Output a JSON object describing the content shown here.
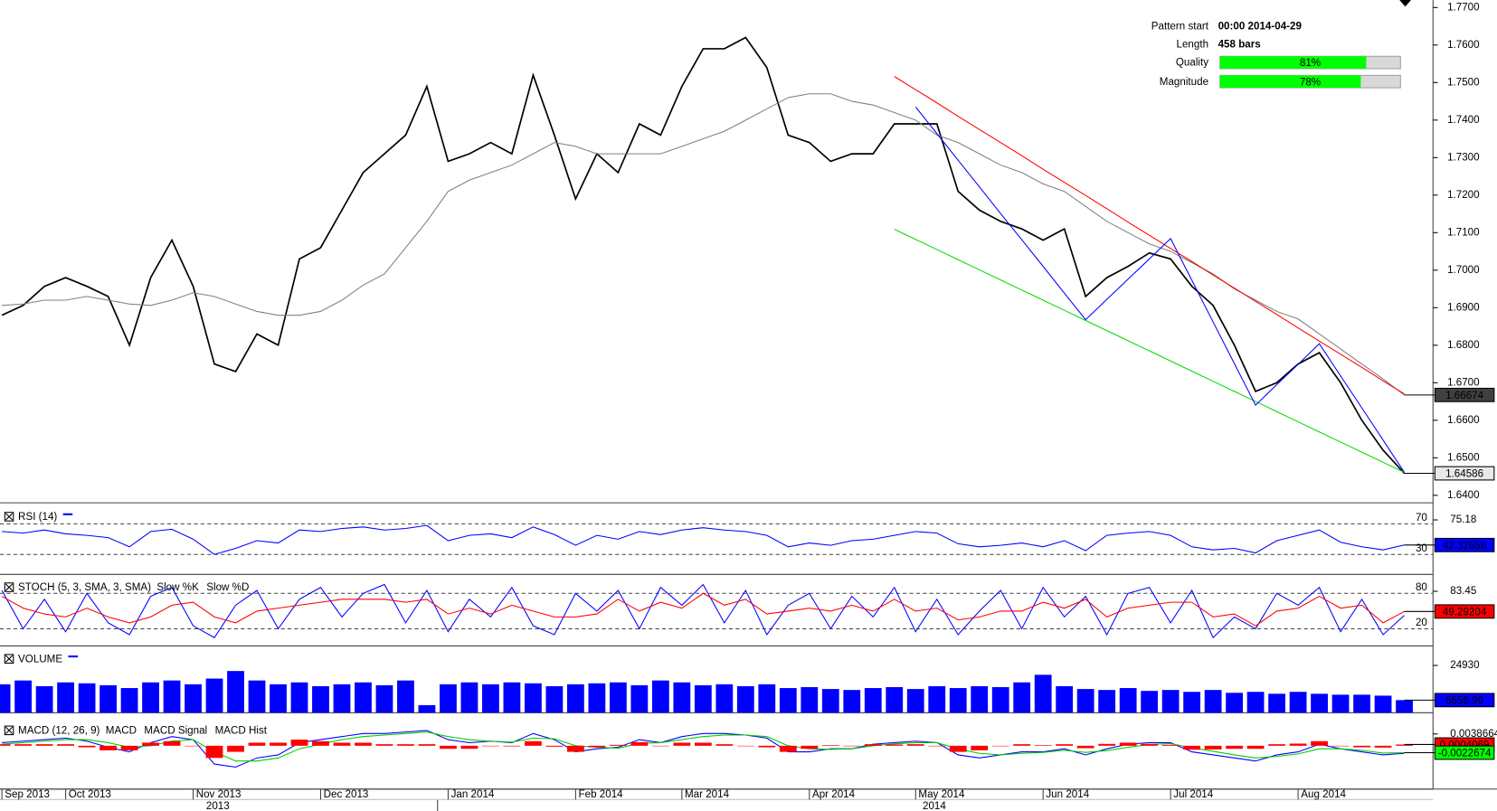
{
  "info": {
    "rows": [
      {
        "label": "Pattern start",
        "value": "00:00 2014-04-29"
      },
      {
        "label": "Length",
        "value": "458 bars"
      },
      {
        "label": "Quality",
        "value": 81,
        "value_label": "81%",
        "color": "#00ff00"
      },
      {
        "label": "Magnitude",
        "value": 78,
        "value_label": "78%",
        "color": "#00ff00"
      }
    ],
    "xlim": [
      0,
      100
    ]
  },
  "years": [
    "2013",
    "2014"
  ],
  "chart_data": [
    {
      "type": "line",
      "categories": [
        "Sep 2013",
        null,
        null,
        "Oct 2013",
        null,
        null,
        null,
        null,
        null,
        "Nov 2013",
        null,
        null,
        null,
        null,
        null,
        "Dec 2013",
        null,
        null,
        null,
        null,
        null,
        "Jan 2014",
        null,
        null,
        null,
        null,
        null,
        "Feb 2014",
        null,
        null,
        null,
        null,
        "Mar 2014",
        null,
        null,
        null,
        null,
        null,
        "Apr 2014",
        null,
        null,
        null,
        null,
        "May 2014",
        null,
        null,
        null,
        null,
        null,
        "Jun 2014",
        null,
        null,
        null,
        null,
        null,
        "Jul 2014",
        null,
        null,
        null,
        null,
        null,
        "Aug 2014",
        null,
        null,
        null,
        null,
        null
      ],
      "ylim": [
        1.638,
        1.772
      ],
      "yticks": [
        {
          "value": 1.77,
          "label": "1.7700"
        },
        {
          "value": 1.76,
          "label": "1.7600"
        },
        {
          "value": 1.75,
          "label": "1.7500"
        },
        {
          "value": 1.74,
          "label": "1.7400"
        },
        {
          "value": 1.73,
          "label": "1.7300"
        },
        {
          "value": 1.72,
          "label": "1.7200"
        },
        {
          "value": 1.71,
          "label": "1.7100"
        },
        {
          "value": 1.7,
          "label": "1.7000"
        },
        {
          "value": 1.69,
          "label": "1.6900"
        },
        {
          "value": 1.68,
          "label": "1.6800"
        },
        {
          "value": 1.67,
          "label": "1.6700"
        },
        {
          "value": 1.66,
          "label": "1.6600"
        },
        {
          "value": 1.65,
          "label": "1.6500"
        },
        {
          "value": 1.64,
          "label": "1.6400"
        }
      ],
      "series": [
        {
          "color": "#000000",
          "values": [
            1.688,
            1.6906,
            1.6957,
            1.698,
            1.6957,
            1.693,
            1.68,
            1.698,
            1.708,
            1.6957,
            1.675,
            1.673,
            1.683,
            1.68,
            1.703,
            1.706,
            1.716,
            1.726,
            1.731,
            1.736,
            1.749,
            1.729,
            1.731,
            1.734,
            1.731,
            1.752,
            1.736,
            1.719,
            1.731,
            1.726,
            1.739,
            1.736,
            1.749,
            1.759,
            1.759,
            1.762,
            1.754,
            1.736,
            1.734,
            1.729,
            1.731,
            1.731,
            1.739,
            1.739,
            1.739,
            1.721,
            1.716,
            1.713,
            1.711,
            1.708,
            1.711,
            1.693,
            1.698,
            1.701,
            1.7046,
            1.703,
            1.6957,
            1.6906,
            1.68,
            1.6677,
            1.67,
            1.675,
            1.678,
            1.67,
            1.66,
            1.652,
            1.64586
          ]
        },
        {
          "color": "#808080",
          "values": [
            1.6906,
            1.691,
            1.692,
            1.692,
            1.693,
            1.692,
            1.691,
            1.6906,
            1.692,
            1.694,
            1.693,
            1.691,
            1.689,
            1.688,
            1.688,
            1.689,
            1.692,
            1.696,
            1.699,
            1.706,
            1.713,
            1.721,
            1.724,
            1.726,
            1.728,
            1.731,
            1.734,
            1.733,
            1.731,
            1.731,
            1.731,
            1.731,
            1.733,
            1.735,
            1.737,
            1.74,
            1.743,
            1.746,
            1.747,
            1.747,
            1.745,
            1.744,
            1.742,
            1.74,
            1.736,
            1.734,
            1.731,
            1.728,
            1.726,
            1.723,
            1.721,
            1.717,
            1.713,
            1.71,
            1.707,
            1.705,
            1.702,
            1.699,
            1.695,
            1.692,
            1.689,
            1.687,
            1.683,
            1.679,
            1.675,
            1.671,
            1.66674
          ]
        },
        {
          "color": "#ff0000",
          "values": [
            null,
            null,
            null,
            null,
            null,
            null,
            null,
            null,
            null,
            null,
            null,
            null,
            null,
            null,
            null,
            null,
            null,
            null,
            null,
            null,
            null,
            null,
            null,
            null,
            null,
            null,
            null,
            null,
            null,
            null,
            null,
            null,
            null,
            null,
            null,
            null,
            null,
            null,
            null,
            null,
            null,
            null,
            1.7516,
            1.7481,
            1.7446,
            1.741,
            1.7375,
            1.734,
            1.7305,
            1.7269,
            1.7234,
            1.7199,
            1.7164,
            1.7128,
            1.7093,
            1.7058,
            1.7023,
            1.6987,
            1.6952,
            1.6917,
            1.6882,
            1.6846,
            1.6811,
            1.6776,
            1.6741,
            1.6705,
            1.667
          ]
        },
        {
          "color": "#00dd00",
          "values": [
            null,
            null,
            null,
            null,
            null,
            null,
            null,
            null,
            null,
            null,
            null,
            null,
            null,
            null,
            null,
            null,
            null,
            null,
            null,
            null,
            null,
            null,
            null,
            null,
            null,
            null,
            null,
            null,
            null,
            null,
            null,
            null,
            null,
            null,
            null,
            null,
            null,
            null,
            null,
            null,
            null,
            null,
            1.7109,
            1.7082,
            1.7055,
            1.7028,
            1.7001,
            1.6974,
            1.6947,
            1.692,
            1.6893,
            1.6866,
            1.6839,
            1.6812,
            1.6785,
            1.6758,
            1.6731,
            1.6704,
            1.6677,
            1.665,
            1.6623,
            1.6596,
            1.6569,
            1.6542,
            1.6515,
            1.6488,
            1.6461
          ]
        },
        {
          "color": "#0000ff",
          "values": [
            null,
            null,
            null,
            null,
            null,
            null,
            null,
            null,
            null,
            null,
            null,
            null,
            null,
            null,
            null,
            null,
            null,
            null,
            null,
            null,
            null,
            null,
            null,
            null,
            null,
            null,
            null,
            null,
            null,
            null,
            null,
            null,
            null,
            null,
            null,
            null,
            null,
            null,
            null,
            null,
            null,
            null,
            null,
            1.7435,
            1.7364,
            1.7293,
            1.7222,
            1.7151,
            1.7081,
            1.701,
            1.6939,
            1.6868,
            1.6922,
            1.6976,
            1.703,
            1.7084,
            1.6973,
            1.6862,
            1.6751,
            1.664,
            1.6695,
            1.6749,
            1.6804,
            1.6718,
            1.6633,
            1.6547,
            1.6461
          ]
        }
      ]
    },
    {
      "type": "line",
      "title": "RSI (14)",
      "ylim": [
        4,
        90
      ],
      "yticks": [
        30,
        70
      ],
      "axis_ticks": [
        75.18
      ],
      "series": [
        {
          "color": "#0000ff",
          "values": [
            60,
            58,
            62,
            57,
            55,
            52,
            40,
            60,
            63,
            50,
            30,
            38,
            48,
            45,
            62,
            60,
            64,
            66,
            62,
            64,
            68,
            48,
            55,
            57,
            52,
            66,
            56,
            42,
            55,
            50,
            60,
            56,
            62,
            65,
            62,
            60,
            55,
            40,
            45,
            42,
            48,
            50,
            55,
            60,
            58,
            44,
            40,
            42,
            45,
            40,
            48,
            35,
            55,
            58,
            60,
            55,
            40,
            36,
            38,
            32,
            48,
            55,
            62,
            46,
            40,
            36,
            42.32656
          ]
        }
      ]
    },
    {
      "type": "line",
      "title": "STOCH (5, 3, SMA, 3, SMA)",
      "ylim": [
        -9,
        104
      ],
      "yticks": [
        20,
        80
      ],
      "axis_ticks": [
        83.45
      ],
      "series": [
        {
          "name": "Slow %K",
          "color": "#0000ff",
          "values": [
            85,
            20,
            70,
            15,
            80,
            30,
            10,
            75,
            90,
            25,
            5,
            60,
            85,
            20,
            70,
            90,
            40,
            80,
            95,
            30,
            85,
            15,
            70,
            40,
            90,
            25,
            10,
            80,
            50,
            85,
            20,
            90,
            60,
            95,
            30,
            85,
            10,
            60,
            80,
            20,
            75,
            40,
            90,
            15,
            70,
            10,
            50,
            85,
            20,
            90,
            40,
            75,
            10,
            80,
            90,
            30,
            85,
            5,
            40,
            20,
            80,
            60,
            90,
            15,
            70,
            10,
            42.5771
          ]
        },
        {
          "name": "Slow %D",
          "color": "#ff0000",
          "values": [
            75,
            55,
            45,
            40,
            55,
            40,
            30,
            40,
            60,
            65,
            40,
            30,
            50,
            55,
            60,
            65,
            70,
            70,
            70,
            65,
            70,
            45,
            55,
            45,
            60,
            50,
            40,
            40,
            45,
            70,
            50,
            65,
            55,
            80,
            60,
            70,
            45,
            50,
            55,
            50,
            60,
            50,
            70,
            50,
            55,
            35,
            40,
            50,
            50,
            65,
            55,
            70,
            40,
            55,
            60,
            65,
            65,
            40,
            45,
            25,
            50,
            55,
            75,
            55,
            60,
            30,
            49.29204
          ]
        }
      ]
    },
    {
      "type": "bar",
      "title": "VOLUME",
      "ylim": [
        0,
        32700
      ],
      "axis_ticks": [
        24930
      ],
      "series": [
        {
          "color": "#0000ff",
          "values": [
            15000,
            17000,
            14000,
            16000,
            15500,
            14500,
            13000,
            16000,
            17000,
            15000,
            18000,
            22000,
            17000,
            15000,
            16000,
            14000,
            15000,
            16000,
            14500,
            17000,
            4000,
            15000,
            16000,
            15000,
            16000,
            15500,
            14000,
            15000,
            15500,
            16000,
            14500,
            17000,
            16000,
            14500,
            15000,
            14000,
            15000,
            13000,
            13500,
            12500,
            12000,
            13000,
            13500,
            12500,
            14000,
            13000,
            14000,
            13500,
            16000,
            20000,
            14000,
            12500,
            12000,
            13000,
            11500,
            12000,
            11000,
            12000,
            10500,
            11000,
            10000,
            11000,
            10000,
            9500,
            9500,
            9000,
            6656.99
          ]
        }
      ]
    },
    {
      "type": "line",
      "title": "MACD (12, 26, 9)",
      "ylim": [
        -0.0142,
        0.0077
      ],
      "axis_ticks": [
        0.0038664
      ],
      "series": [
        {
          "name": "MACD",
          "color": "#0000ff",
          "values": [
            0.001,
            0.0015,
            0.002,
            0.0025,
            0.0015,
            -0.0005,
            -0.002,
            0.001,
            0.003,
            0.002,
            -0.006,
            -0.007,
            -0.004,
            -0.003,
            0.001,
            0.002,
            0.003,
            0.004,
            0.004,
            0.0045,
            0.005,
            0.002,
            0.001,
            0.0015,
            0.001,
            0.004,
            0.002,
            -0.002,
            -0.001,
            -0.0005,
            0.002,
            0.001,
            0.003,
            0.004,
            0.004,
            0.0035,
            0.0025,
            -0.002,
            -0.002,
            -0.001,
            -0.001,
            0.0005,
            0.001,
            0.0015,
            0.001,
            -0.003,
            -0.004,
            -0.003,
            -0.002,
            -0.002,
            -0.001,
            -0.003,
            -0.001,
            0.0005,
            0.001,
            0.001,
            -0.002,
            -0.003,
            -0.004,
            -0.005,
            -0.003,
            -0.002,
            0.0005,
            -0.001,
            -0.002,
            -0.003,
            -0.0025
          ]
        },
        {
          "name": "MACD Signal",
          "color": "#00cc00",
          "values": [
            0.0005,
            0.001,
            0.0015,
            0.002,
            0.002,
            0.001,
            -0.0005,
            0,
            0.0015,
            0.002,
            -0.002,
            -0.005,
            -0.005,
            -0.004,
            -0.001,
            0.0005,
            0.002,
            0.003,
            0.0035,
            0.004,
            0.0045,
            0.003,
            0.002,
            0.0015,
            0.0012,
            0.0025,
            0.0023,
            0,
            -0.0005,
            -0.0008,
            0.0008,
            0.001,
            0.002,
            0.003,
            0.0035,
            0.0035,
            0.003,
            0,
            -0.001,
            -0.0012,
            -0.001,
            0,
            0.0006,
            0.001,
            0.001,
            -0.001,
            -0.0025,
            -0.003,
            -0.0025,
            -0.0022,
            -0.0015,
            -0.0022,
            -0.0016,
            -0.0005,
            0.0004,
            0.0007,
            -0.0007,
            -0.0018,
            -0.003,
            -0.004,
            -0.0035,
            -0.0027,
            -0.001,
            -0.001,
            -0.0015,
            -0.0024,
            -0.0022674
          ]
        },
        {
          "name": "MACD Hist",
          "color": "#ff0000",
          "type": "bar",
          "values": [
            0.0005,
            0.0005,
            0.0005,
            0.0005,
            -0.0005,
            -0.0015,
            -0.0015,
            0.001,
            0.0015,
            0,
            -0.004,
            -0.002,
            0.001,
            0.001,
            0.002,
            0.0015,
            0.001,
            0.001,
            0.0005,
            0.0005,
            0.0005,
            -0.001,
            -0.001,
            0,
            -0.0002,
            0.0015,
            -0.0003,
            -0.002,
            -0.0005,
            0.0003,
            0.0012,
            0,
            0.001,
            0.001,
            0.0005,
            0,
            -0.0005,
            -0.002,
            -0.001,
            0.0002,
            0,
            0.0005,
            0.0004,
            0.0005,
            0,
            -0.002,
            -0.0015,
            0,
            0.0005,
            0.0002,
            0.0005,
            -0.0008,
            0.0006,
            0.001,
            0.0006,
            0.0003,
            -0.0013,
            -0.0012,
            -0.001,
            -0.001,
            0.0005,
            0.0007,
            0.0015,
            0,
            -0.0005,
            -0.0006,
            0.0004069
          ]
        }
      ]
    }
  ]
}
